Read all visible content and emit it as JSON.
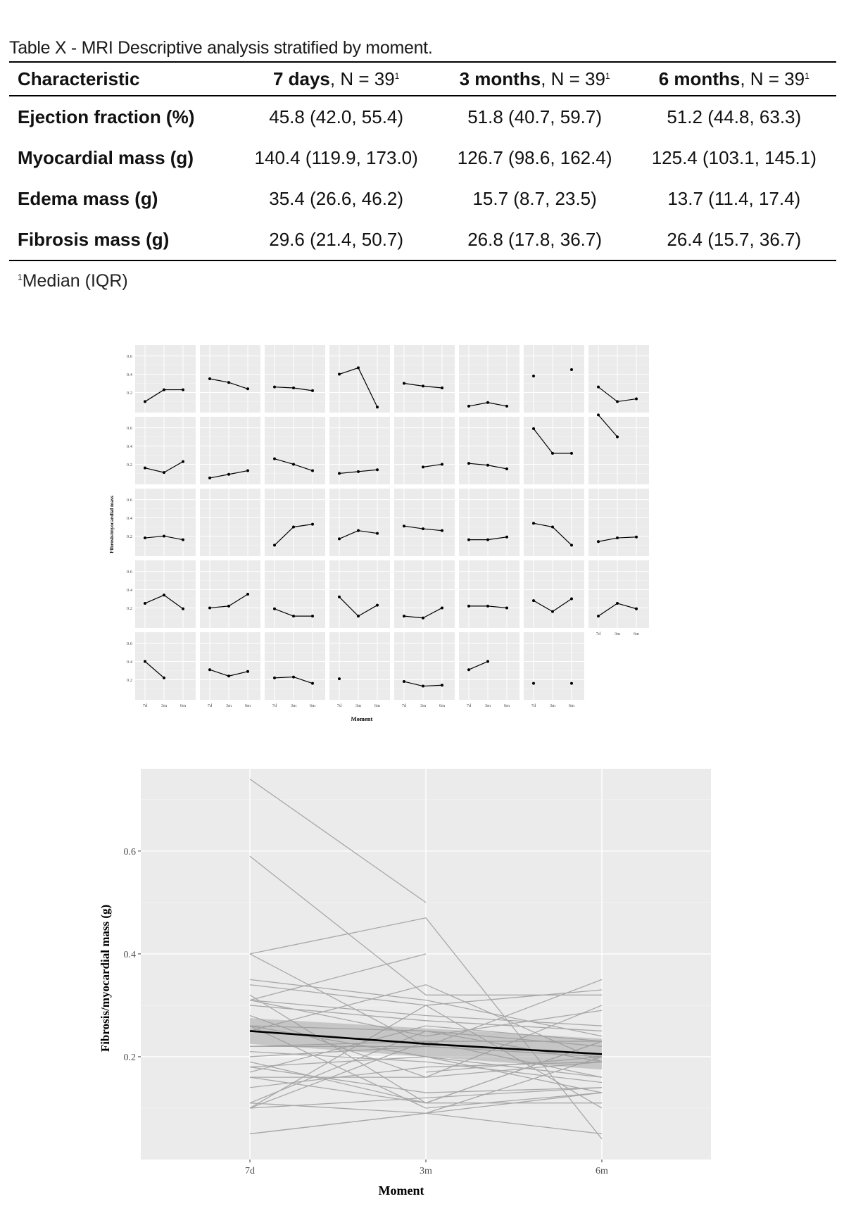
{
  "table": {
    "caption": "Table X - MRI Descriptive analysis stratified by moment.",
    "header": {
      "characteristic": "Characteristic",
      "columns": [
        {
          "bold": "7 days",
          "rest": ", N = 39",
          "sup": "1"
        },
        {
          "bold": "3 months",
          "rest": ", N = 39",
          "sup": "1"
        },
        {
          "bold": "6 months",
          "rest": ", N = 39",
          "sup": "1"
        }
      ]
    },
    "rows": [
      {
        "label": "Ejection fraction (%)",
        "values": [
          "45.8 (42.0, 55.4)",
          "51.8 (40.7, 59.7)",
          "51.2 (44.8, 63.3)"
        ]
      },
      {
        "label": "Myocardial mass (g)",
        "values": [
          "140.4 (119.9, 173.0)",
          "126.7 (98.6, 162.4)",
          "125.4 (103.1, 145.1)"
        ]
      },
      {
        "label": "Edema mass (g)",
        "values": [
          "35.4 (26.6, 46.2)",
          "15.7 (8.7, 23.5)",
          "13.7 (11.4, 17.4)"
        ]
      },
      {
        "label": "Fibrosis mass (g)",
        "values": [
          "29.6 (21.4, 50.7)",
          "26.8 (17.8, 36.7)",
          "26.4 (15.7, 36.7)"
        ]
      }
    ],
    "footnote_sup": "1",
    "footnote": "Median (IQR)"
  },
  "chart_data": [
    {
      "type": "line",
      "facet": true,
      "x": [
        "7d",
        "3m",
        "6m"
      ],
      "ylabel": "Fibrosis/myocardial mass",
      "xlabel": "Moment",
      "yticks": [
        0.2,
        0.4,
        0.6
      ],
      "grid": true,
      "panels": [
        [
          0.1,
          0.23,
          0.23
        ],
        [
          0.35,
          0.31,
          0.24
        ],
        [
          0.26,
          0.25,
          0.22
        ],
        [
          0.4,
          0.47,
          0.04
        ],
        [
          0.3,
          0.27,
          0.25
        ],
        [
          0.05,
          0.09,
          0.05
        ],
        [
          0.38,
          null,
          0.45
        ],
        [
          0.26,
          0.1,
          0.13
        ],
        [
          0.16,
          0.11,
          0.23
        ],
        [
          0.05,
          0.09,
          0.13
        ],
        [
          0.26,
          0.2,
          0.13
        ],
        [
          0.1,
          0.12,
          0.14
        ],
        [
          null,
          0.17,
          0.2
        ],
        [
          0.21,
          0.19,
          0.15
        ],
        [
          0.59,
          0.32,
          0.32
        ],
        [
          0.74,
          0.5,
          null
        ],
        [
          0.18,
          0.2,
          0.16
        ],
        [
          null,
          null,
          null
        ],
        [
          0.1,
          0.3,
          0.33
        ],
        [
          0.17,
          0.26,
          0.23
        ],
        [
          0.31,
          0.28,
          0.26
        ],
        [
          0.16,
          0.16,
          0.19
        ],
        [
          0.34,
          0.3,
          0.1
        ],
        [
          0.14,
          0.18,
          0.19
        ],
        [
          0.25,
          0.34,
          0.19
        ],
        [
          0.2,
          0.22,
          0.35
        ],
        [
          0.19,
          0.11,
          0.11
        ],
        [
          0.32,
          0.11,
          0.23
        ],
        [
          0.11,
          0.09,
          0.2
        ],
        [
          0.22,
          0.22,
          0.2
        ],
        [
          0.28,
          0.16,
          0.3
        ],
        [
          0.11,
          0.25,
          0.19
        ],
        [
          0.4,
          0.22,
          null
        ],
        [
          0.31,
          0.24,
          0.29
        ],
        [
          0.22,
          0.23,
          0.16
        ],
        [
          0.21,
          null,
          null
        ],
        [
          0.18,
          0.13,
          0.14
        ],
        [
          0.31,
          0.4,
          null
        ],
        [
          0.16,
          null,
          0.16
        ]
      ]
    },
    {
      "type": "line",
      "x": [
        "7d",
        "3m",
        "6m"
      ],
      "ylabel": "Fibrosis/myocardial mass (g)",
      "xlabel": "Moment",
      "yticks": [
        0.2,
        0.4,
        0.6
      ],
      "ylim": [
        0.0,
        0.76
      ],
      "grid": true,
      "smooth": {
        "x": [
          "7d",
          "3m",
          "6m"
        ],
        "y": [
          0.25,
          0.225,
          0.205
        ],
        "band_low": [
          0.225,
          0.2,
          0.175
        ],
        "band_high": [
          0.275,
          0.255,
          0.235
        ]
      }
    }
  ]
}
